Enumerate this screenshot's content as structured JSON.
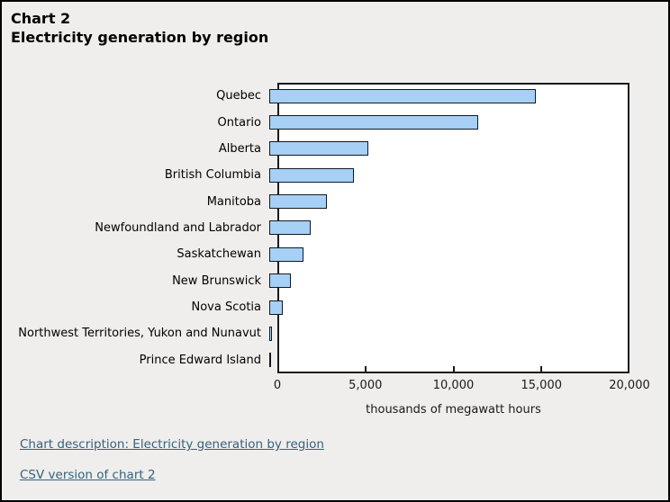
{
  "header": {
    "title_line1": "Chart 2",
    "title_line2": "Electricity generation by region"
  },
  "chart_data": {
    "type": "bar",
    "orientation": "horizontal",
    "categories": [
      "Quebec",
      "Ontario",
      "Alberta",
      "British Columbia",
      "Manitoba",
      "Newfoundland and Labrador",
      "Saskatchewan",
      "New Brunswick",
      "Nova Scotia",
      "Northwest Territories, Yukon and Nunavut",
      "Prince Edward Island"
    ],
    "values": [
      14800,
      11600,
      5500,
      4700,
      3200,
      2300,
      1900,
      1200,
      750,
      170,
      30
    ],
    "title": "Electricity generation by region",
    "xlabel": "thousands of megawatt hours",
    "ylabel": "",
    "xlim": [
      0,
      20000
    ],
    "xticks": [
      0,
      5000,
      10000,
      15000,
      20000
    ],
    "xtick_labels": [
      "0",
      "5,000",
      "10,000",
      "15,000",
      "20,000"
    ],
    "grid": false,
    "legend": "none"
  },
  "links": [
    {
      "label": "Chart description: Electricity generation by region"
    },
    {
      "label": "CSV version of chart 2"
    }
  ],
  "colors": {
    "bar_fill": "#a6d0f5",
    "bar_border": "#16181e",
    "link": "#33627e",
    "page_background": "#efeeec",
    "plot_background": "#ffffff"
  }
}
